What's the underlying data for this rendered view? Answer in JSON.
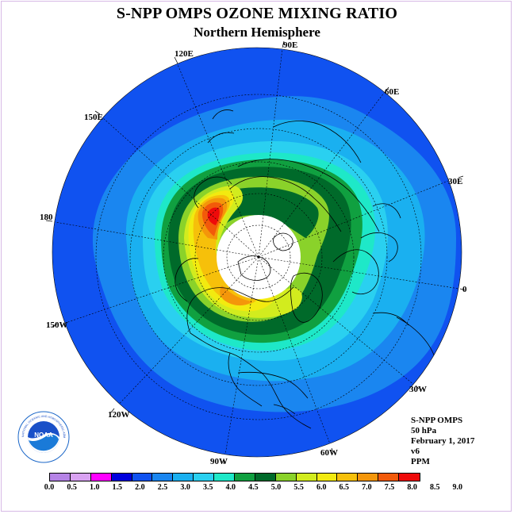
{
  "header": {
    "title": "S-NPP OMPS OZONE MIXING RATIO",
    "subtitle": "Northern Hemisphere"
  },
  "map": {
    "projection": "north-polar-stereographic",
    "longitude_labels": {
      "lon_90e": "90E",
      "lon_120e": "120E",
      "lon_60e": "60E",
      "lon_150e": "150E",
      "lon_30e": "30E",
      "lon_180": "180",
      "lon_0": "0",
      "lon_150w": "150W",
      "lon_30w": "30W",
      "lon_120w": "120W",
      "lon_60w": "60W",
      "lon_90w": "90W"
    },
    "no_data_region": "polar night (no data)",
    "max_region": "near 180",
    "colors": {
      "background_field": "#1052f0",
      "no_data": "#ffffff",
      "coastline": "#000000"
    }
  },
  "info": {
    "instrument": "S-NPP OMPS",
    "pressure_level": "50 hPa",
    "date": "February 1, 2017",
    "version": "v6",
    "units": "PPM"
  },
  "colorbar": {
    "tick_labels": [
      "0.0",
      "0.5",
      "1.0",
      "1.5",
      "2.0",
      "2.5",
      "3.0",
      "3.5",
      "4.0",
      "4.5",
      "5.0",
      "5.5",
      "6.0",
      "6.5",
      "7.0",
      "7.5",
      "8.0",
      "8.5",
      "9.0"
    ],
    "colors": [
      "#b583e6",
      "#d9a2f2",
      "#ff00ff",
      "#0000dd",
      "#1052f0",
      "#1a86f0",
      "#1ab0f0",
      "#2ad0f0",
      "#1ee8c8",
      "#10a040",
      "#006a2a",
      "#8ad22a",
      "#d2ec1e",
      "#f2ea10",
      "#f6c00a",
      "#f4960a",
      "#f25a0a",
      "#ee0a0a",
      "#a0522d"
    ]
  },
  "logo": {
    "text": "NOAA",
    "ring_text": "NATIONAL OCEANIC AND ATMOSPHERIC ADMINISTRATION · U.S. DEPARTMENT OF COMMERCE"
  }
}
